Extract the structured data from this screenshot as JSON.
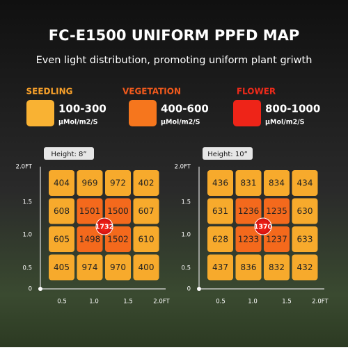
{
  "header": {
    "title": "FC-E1500 UNIFORM PPFD MAP",
    "subtitle": "Even light distribution, promoting uniform plant griwth"
  },
  "legend": [
    {
      "name": "SEEDLING",
      "range": "100-300",
      "unit": "μMol/m2/S"
    },
    {
      "name": "VEGETATION",
      "range": "400-600",
      "unit": "μMol/m2/S"
    },
    {
      "name": "FLOWER",
      "range": "800-1000",
      "unit": "μMol/m2/S"
    }
  ],
  "maps": [
    {
      "height_label": "Height: 8”",
      "y_ticks": [
        "2.0FT",
        "1.5",
        "1.0",
        "0.5",
        "0"
      ],
      "x_ticks": [
        "0.5",
        "1.0",
        "1.5",
        "2.0FT"
      ],
      "rows": [
        [
          "404",
          "969",
          "972",
          "402"
        ],
        [
          "608",
          "1501",
          "1500",
          "607"
        ],
        [
          "605",
          "1498",
          "1502",
          "610"
        ],
        [
          "405",
          "974",
          "970",
          "400"
        ]
      ],
      "center": "1732"
    },
    {
      "height_label": "Height: 10”",
      "y_ticks": [
        "2.0FT",
        "1.5",
        "1.0",
        "0.5",
        "0"
      ],
      "x_ticks": [
        "0.5",
        "1.0",
        "1.5",
        "2.0FT"
      ],
      "rows": [
        [
          "436",
          "831",
          "834",
          "434"
        ],
        [
          "631",
          "1236",
          "1235",
          "630"
        ],
        [
          "628",
          "1233",
          "1237",
          "633"
        ],
        [
          "437",
          "836",
          "832",
          "432"
        ]
      ],
      "center": "1370"
    }
  ]
}
